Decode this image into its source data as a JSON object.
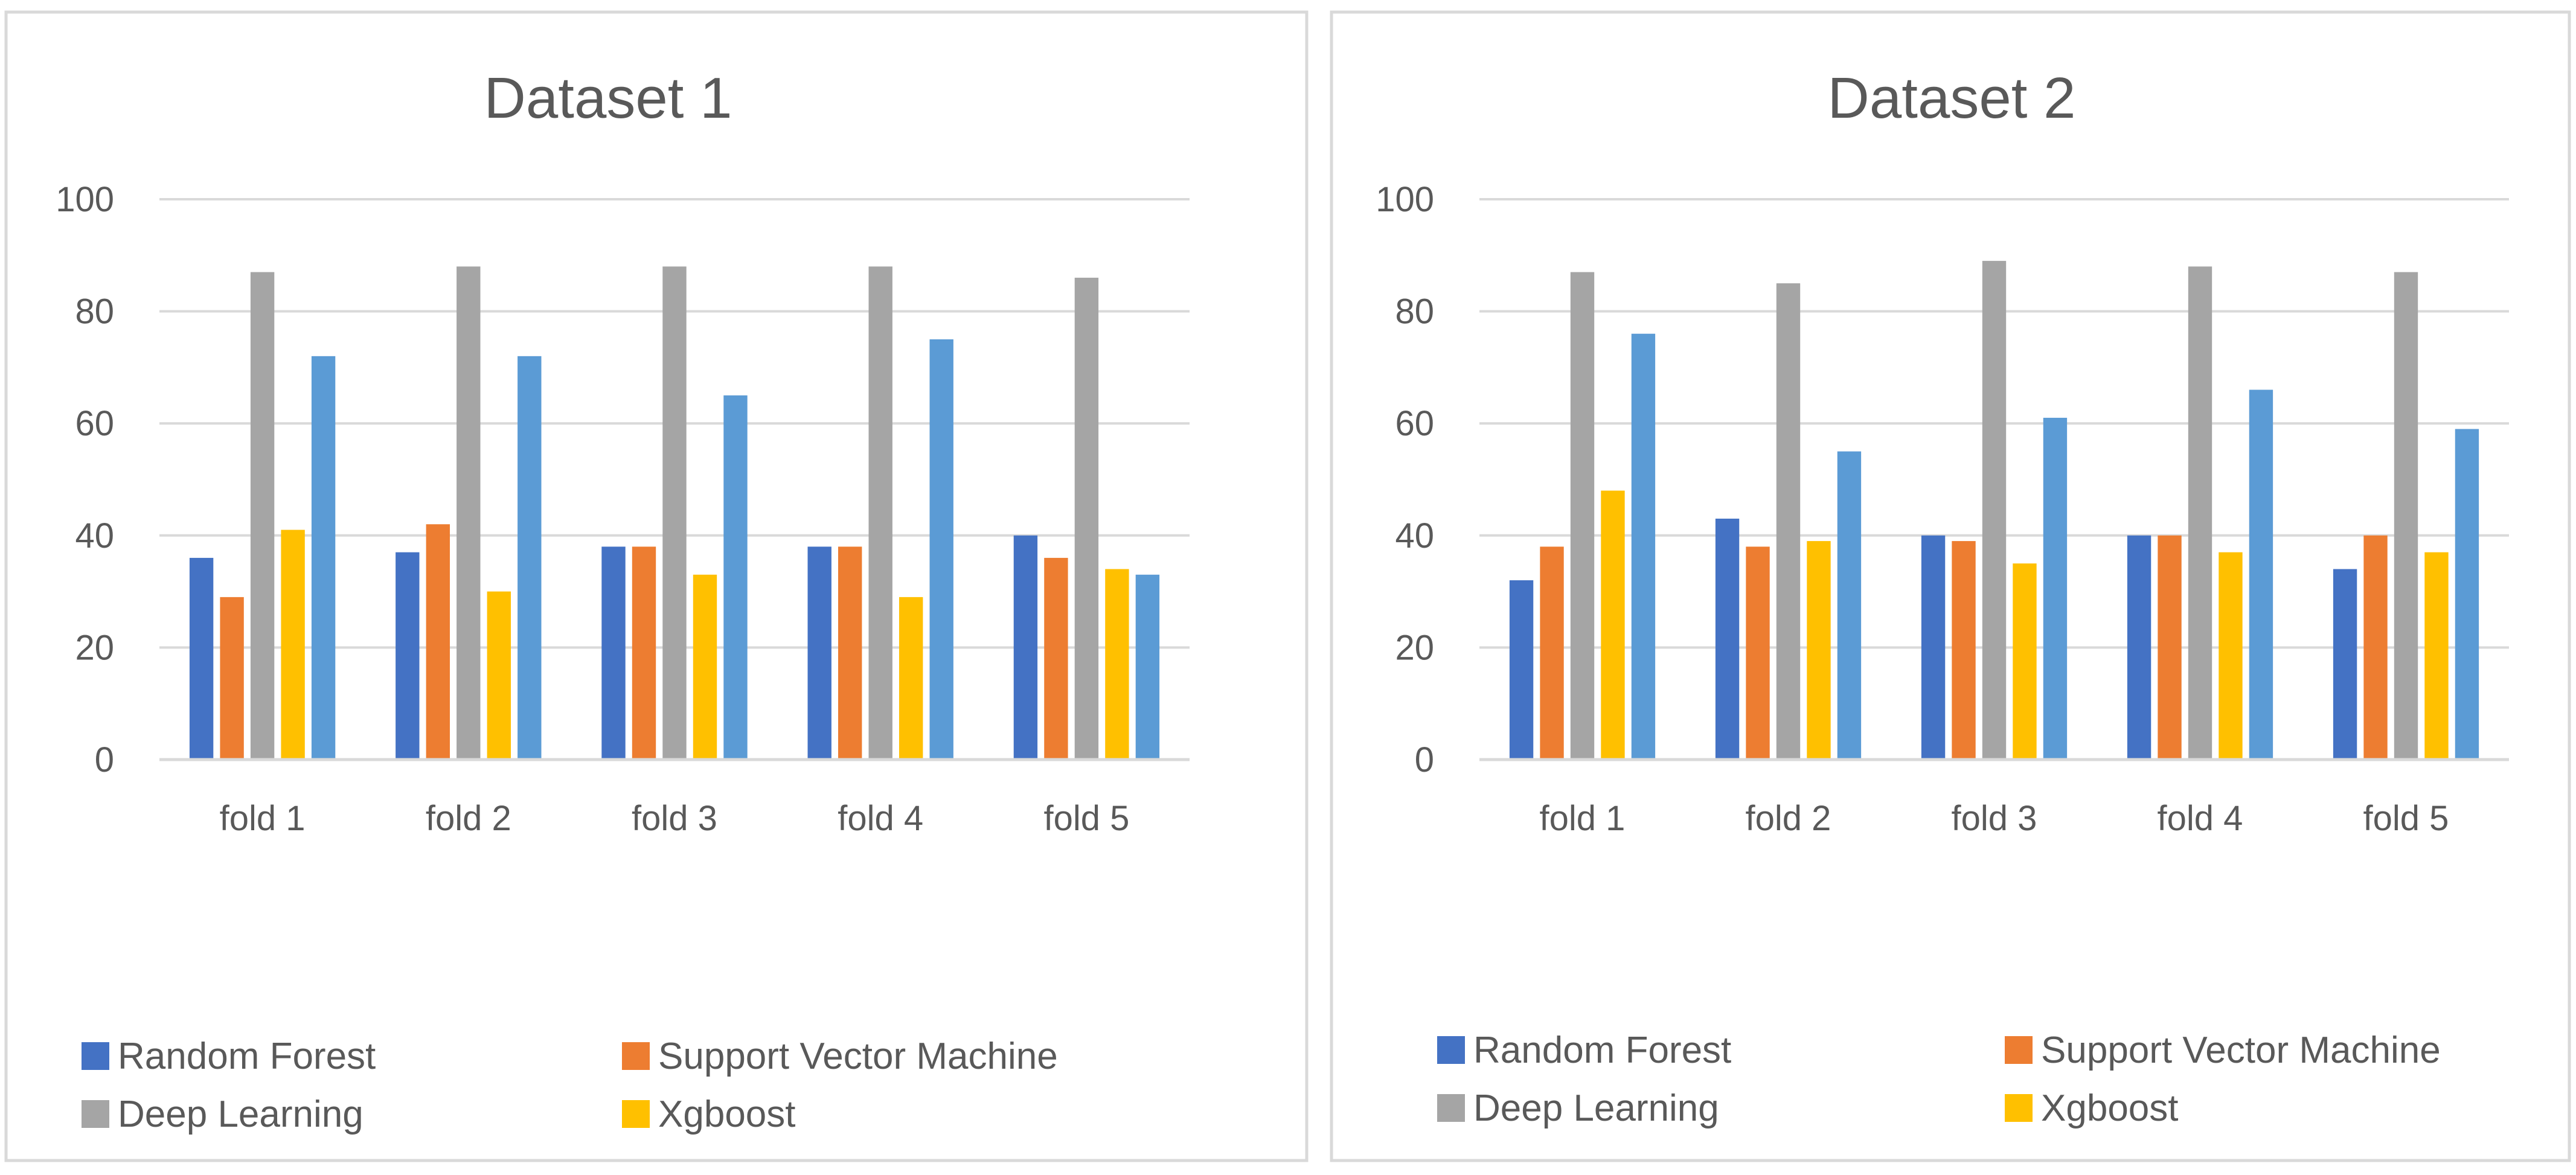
{
  "chart_data": [
    {
      "type": "bar",
      "title": "Dataset 1",
      "categories": [
        "fold 1",
        "fold 2",
        "fold 3",
        "fold 4",
        "fold 5"
      ],
      "yticks": [
        "0",
        "20",
        "40",
        "60",
        "80",
        "100"
      ],
      "ylim": [
        0,
        100
      ],
      "grid": true,
      "legend_position": "bottom",
      "series": [
        {
          "name": "Random Forest",
          "color": "#4472C4",
          "values": [
            36,
            37,
            38,
            38,
            40
          ]
        },
        {
          "name": "Support Vector Machine",
          "color": "#ED7D31",
          "values": [
            29,
            42,
            38,
            38,
            36
          ]
        },
        {
          "name": "Deep Learning",
          "color": "#A5A5A5",
          "values": [
            87,
            88,
            88,
            88,
            86
          ]
        },
        {
          "name": "Xgboost",
          "color": "#FFC000",
          "values": [
            41,
            30,
            33,
            29,
            34
          ]
        },
        {
          "name": "",
          "color": "#5B9BD5",
          "values": [
            72,
            72,
            65,
            75,
            33
          ]
        }
      ]
    },
    {
      "type": "bar",
      "title": "Dataset 2",
      "categories": [
        "fold 1",
        "fold 2",
        "fold 3",
        "fold 4",
        "fold 5"
      ],
      "yticks": [
        "0",
        "20",
        "40",
        "60",
        "80",
        "100"
      ],
      "ylim": [
        0,
        100
      ],
      "grid": true,
      "legend_position": "bottom",
      "series": [
        {
          "name": "Random Forest",
          "color": "#4472C4",
          "values": [
            32,
            43,
            40,
            40,
            34
          ]
        },
        {
          "name": "Support Vector Machine",
          "color": "#ED7D31",
          "values": [
            38,
            38,
            39,
            40,
            40
          ]
        },
        {
          "name": "Deep Learning",
          "color": "#A5A5A5",
          "values": [
            87,
            85,
            89,
            88,
            87
          ]
        },
        {
          "name": "Xgboost",
          "color": "#FFC000",
          "values": [
            48,
            39,
            35,
            37,
            37
          ]
        },
        {
          "name": "",
          "color": "#5B9BD5",
          "values": [
            76,
            55,
            61,
            66,
            59
          ]
        }
      ]
    }
  ]
}
